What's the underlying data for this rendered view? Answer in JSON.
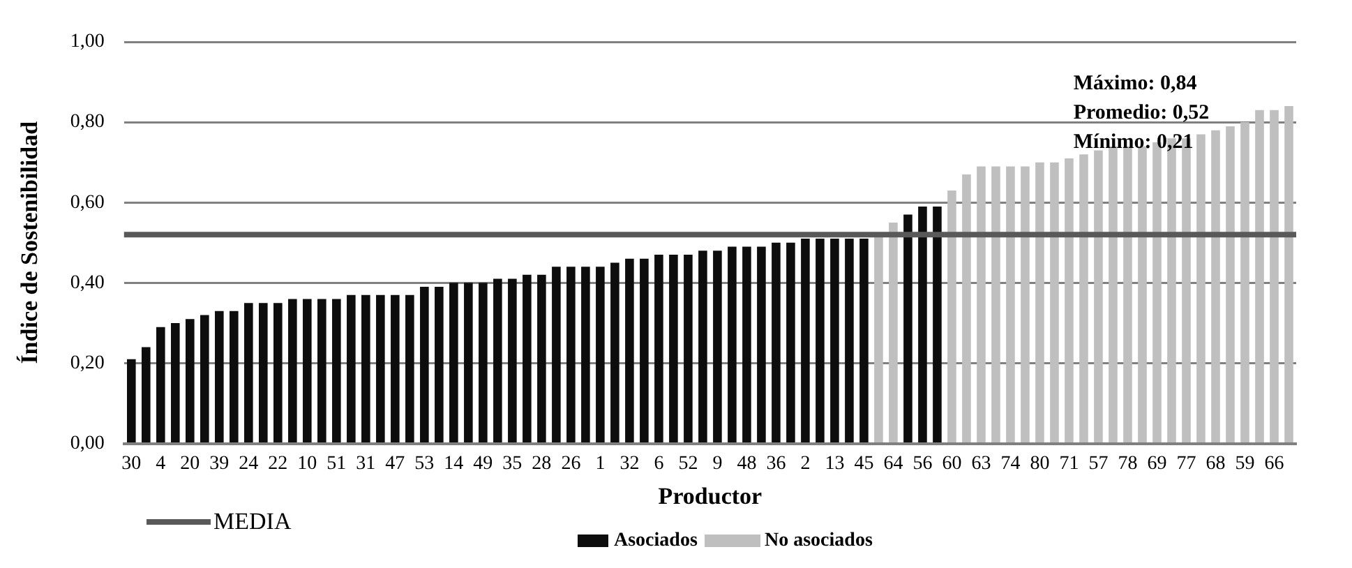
{
  "chart_data": {
    "type": "bar",
    "stacked": true,
    "xlabel": "Productor",
    "ylabel": "Índice de Sostenibilidad",
    "categories": [
      "30",
      null,
      "4",
      null,
      "20",
      null,
      "39",
      null,
      "24",
      null,
      "22",
      null,
      "10",
      null,
      "51",
      null,
      "31",
      null,
      "47",
      null,
      "53",
      null,
      "14",
      null,
      "49",
      null,
      "35",
      null,
      "28",
      null,
      "26",
      null,
      "1",
      null,
      "32",
      null,
      "6",
      null,
      "52",
      null,
      "9",
      null,
      "48",
      null,
      "36",
      null,
      "2",
      null,
      "13",
      null,
      "45",
      null,
      "64",
      null,
      "56",
      null,
      "60",
      null,
      "63",
      null,
      "74",
      null,
      "80",
      null,
      "71",
      null,
      "57",
      null,
      "78",
      null,
      "69",
      null,
      "77",
      null,
      "68",
      null,
      "59",
      null,
      "66",
      null
    ],
    "series": [
      {
        "name": "No asociados",
        "color": "#bfbfbf",
        "values": [
          null,
          null,
          null,
          null,
          null,
          null,
          null,
          null,
          null,
          null,
          null,
          null,
          null,
          null,
          null,
          null,
          null,
          null,
          null,
          null,
          null,
          null,
          null,
          null,
          null,
          null,
          null,
          null,
          null,
          null,
          null,
          null,
          null,
          null,
          null,
          null,
          null,
          null,
          null,
          null,
          null,
          null,
          null,
          null,
          null,
          null,
          null,
          null,
          null,
          null,
          null,
          0.52,
          0.55,
          null,
          null,
          null,
          0.63,
          0.67,
          0.69,
          0.69,
          0.69,
          0.69,
          0.7,
          0.7,
          0.71,
          0.72,
          0.73,
          0.74,
          0.74,
          0.74,
          0.75,
          0.76,
          0.76,
          0.77,
          0.78,
          0.79,
          0.8,
          0.83,
          0.83,
          0.84
        ]
      },
      {
        "name": "Asociados",
        "color": "#0d0d0d",
        "values": [
          0.21,
          0.24,
          0.29,
          0.3,
          0.31,
          0.32,
          0.33,
          0.33,
          0.35,
          0.35,
          0.35,
          0.36,
          0.36,
          0.36,
          0.36,
          0.37,
          0.37,
          0.37,
          0.37,
          0.37,
          0.39,
          0.39,
          0.4,
          0.4,
          0.4,
          0.41,
          0.41,
          0.42,
          0.42,
          0.44,
          0.44,
          0.44,
          0.44,
          0.45,
          0.46,
          0.46,
          0.47,
          0.47,
          0.47,
          0.48,
          0.48,
          0.49,
          0.49,
          0.49,
          0.5,
          0.5,
          0.51,
          0.51,
          0.51,
          0.51,
          0.51,
          null,
          null,
          0.57,
          0.59,
          0.59,
          null,
          null,
          null,
          null,
          null,
          null,
          null,
          null,
          null,
          null,
          null,
          null,
          null,
          null,
          null,
          null,
          null,
          null,
          null,
          null,
          null,
          null,
          null,
          null
        ]
      }
    ],
    "ylim": [
      0,
      1
    ],
    "yticks": [
      {
        "value": 0,
        "label": "0,00"
      },
      {
        "value": 0.2,
        "label": "0,20"
      },
      {
        "value": 0.4,
        "label": "0,40"
      },
      {
        "value": 0.6,
        "label": "0,60"
      },
      {
        "value": 0.8,
        "label": "0,80"
      },
      {
        "value": 1,
        "label": "1,00"
      }
    ],
    "grid": "y",
    "legend": "bottom",
    "ref_lines": [
      {
        "axis": "y",
        "value": 0.52,
        "label": "MEDIA",
        "color": "#595959"
      }
    ],
    "annotations": [
      "Máximo: 0,84",
      "Promedio: 0,52",
      "Mínimo: 0,21"
    ]
  }
}
